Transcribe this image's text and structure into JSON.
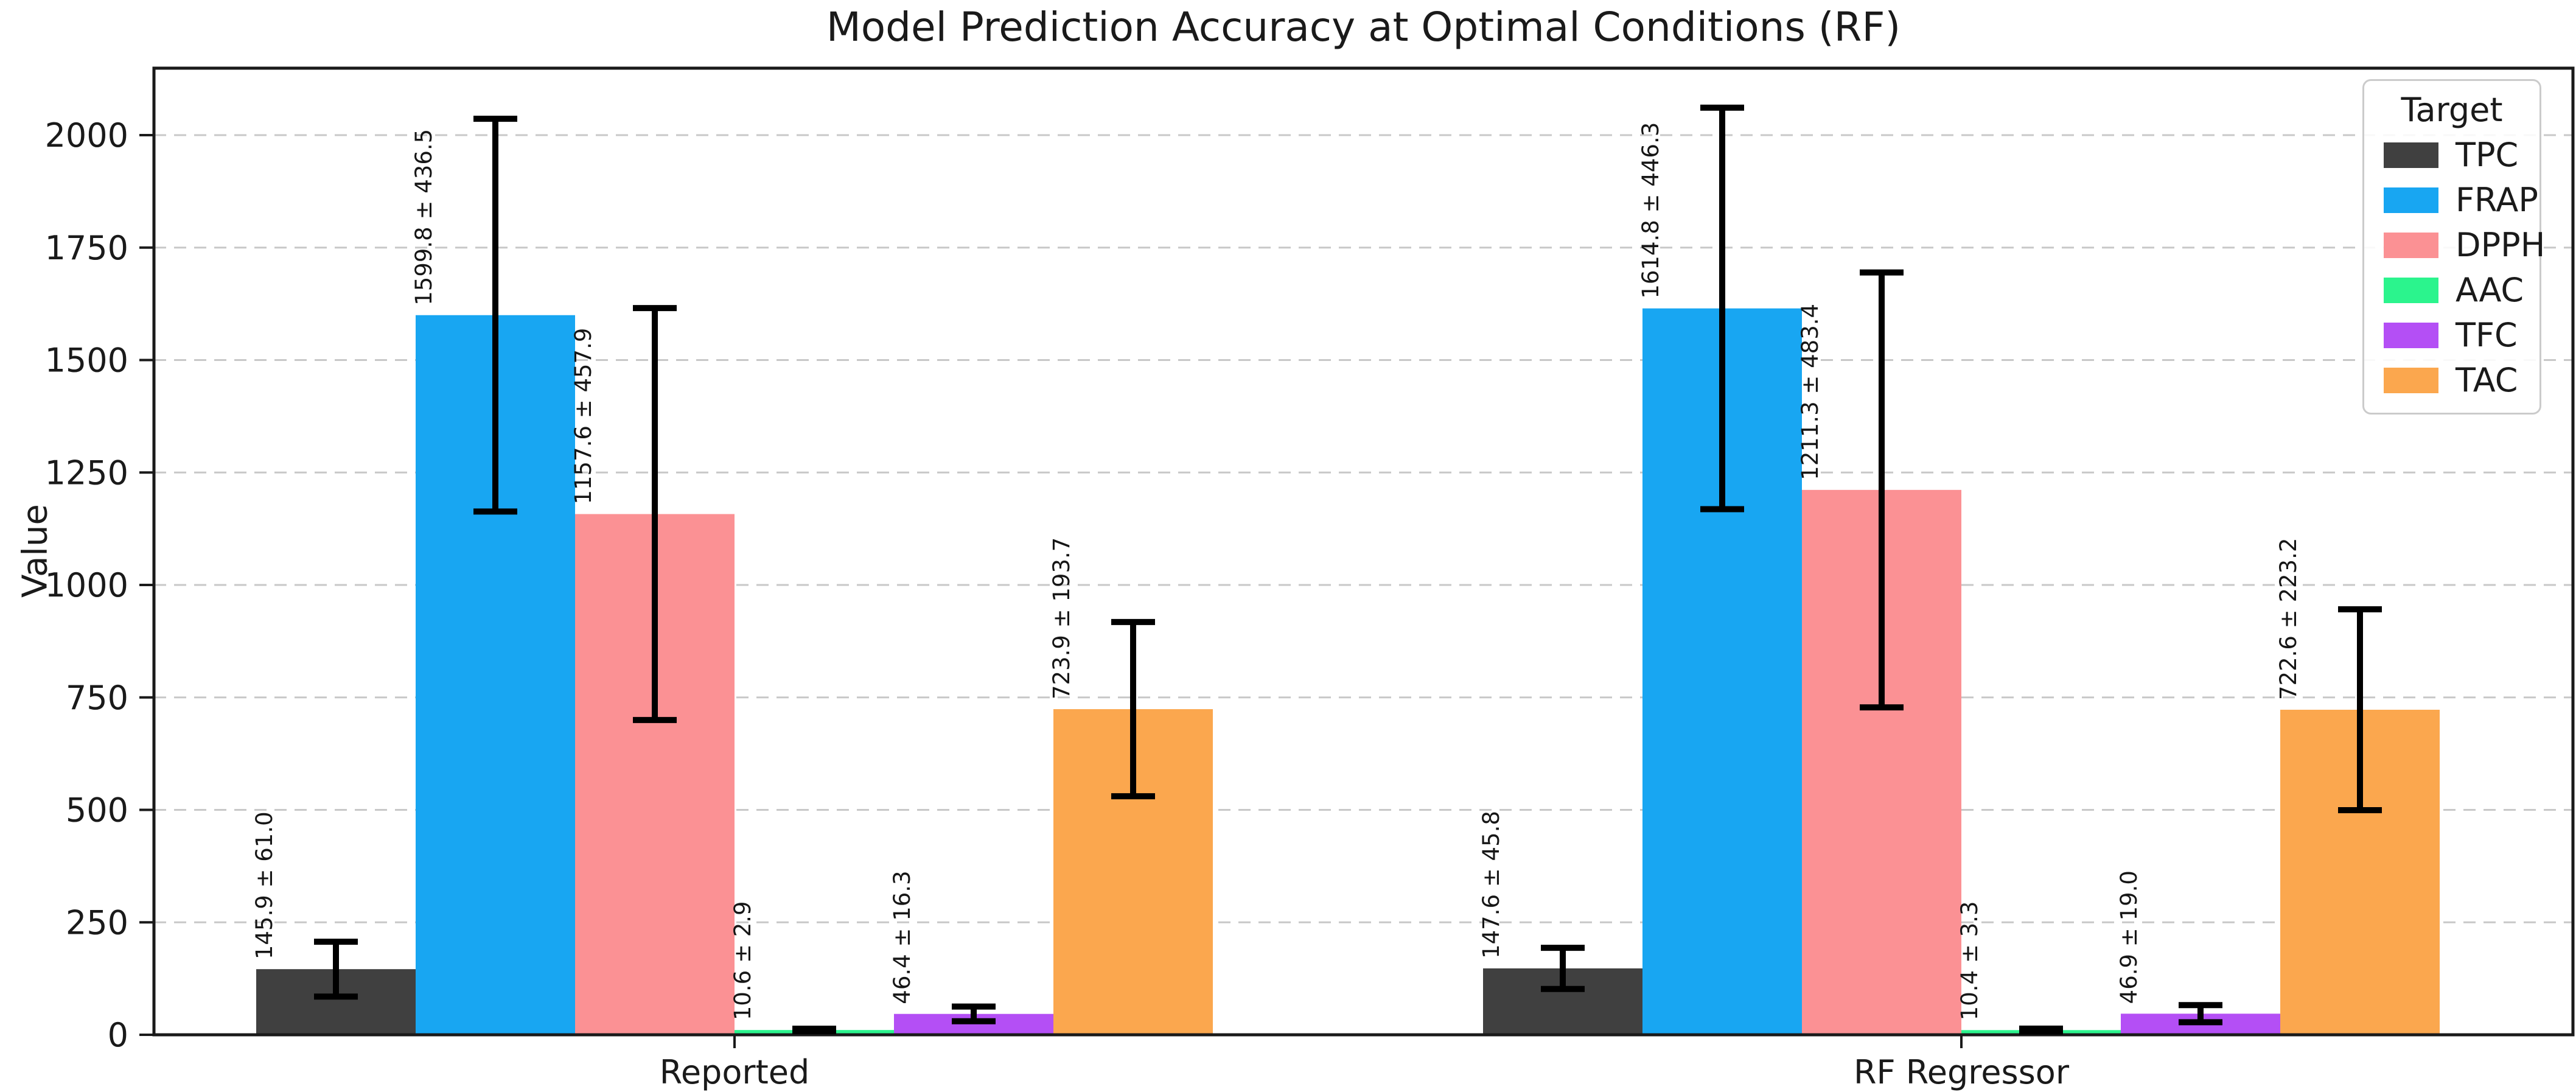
{
  "figure": {
    "background": "#ffffff"
  },
  "chart_data": {
    "type": "bar",
    "title": "Model Prediction Accuracy at Optimal Conditions (RF)",
    "ylabel": "Value",
    "xlabel": "",
    "categories": [
      "Reported",
      "RF Regressor"
    ],
    "yticks": [
      0,
      250,
      500,
      750,
      1000,
      1250,
      1500,
      1750,
      2000
    ],
    "ytick_labels": [
      "0",
      "250",
      "500",
      "750",
      "1000",
      "1250",
      "1500",
      "1750",
      "2000"
    ],
    "ylim": [
      0,
      2148
    ],
    "grid": {
      "axis": "y",
      "style": "dashed",
      "color": "#c8c8c8"
    },
    "axis_color": "#1a1a1a",
    "errorbar_color": "#000000",
    "legend": {
      "title": "Target",
      "position": "upper right"
    },
    "series": [
      {
        "name": "TPC",
        "color": "#404040",
        "values": [
          145.9,
          147.6
        ],
        "errors": [
          61.0,
          45.8
        ],
        "labels": [
          "145.9 ± 61.0",
          "147.6 ± 45.8"
        ]
      },
      {
        "name": "FRAP",
        "color": "#18a6f2",
        "values": [
          1599.8,
          1614.8
        ],
        "errors": [
          436.5,
          446.3
        ],
        "labels": [
          "1599.8 ± 436.5",
          "1614.8 ± 446.3"
        ]
      },
      {
        "name": "DPPH",
        "color": "#fb9194",
        "values": [
          1157.6,
          1211.3
        ],
        "errors": [
          457.9,
          483.4
        ],
        "labels": [
          "1157.6 ± 457.9",
          "1211.3 ± 483.4"
        ]
      },
      {
        "name": "AAC",
        "color": "#2bf48d",
        "values": [
          10.6,
          10.4
        ],
        "errors": [
          2.9,
          3.3
        ],
        "labels": [
          "10.6 ± 2.9",
          "10.4 ± 3.3"
        ]
      },
      {
        "name": "TFC",
        "color": "#b44ff5",
        "values": [
          46.4,
          46.9
        ],
        "errors": [
          16.3,
          19.0
        ],
        "labels": [
          "46.4 ± 16.3",
          "46.9 ± 19.0"
        ]
      },
      {
        "name": "TAC",
        "color": "#fba74e",
        "values": [
          723.9,
          722.6
        ],
        "errors": [
          193.7,
          223.2
        ],
        "labels": [
          "723.9 ± 193.7",
          "722.6 ± 223.2"
        ]
      }
    ]
  }
}
